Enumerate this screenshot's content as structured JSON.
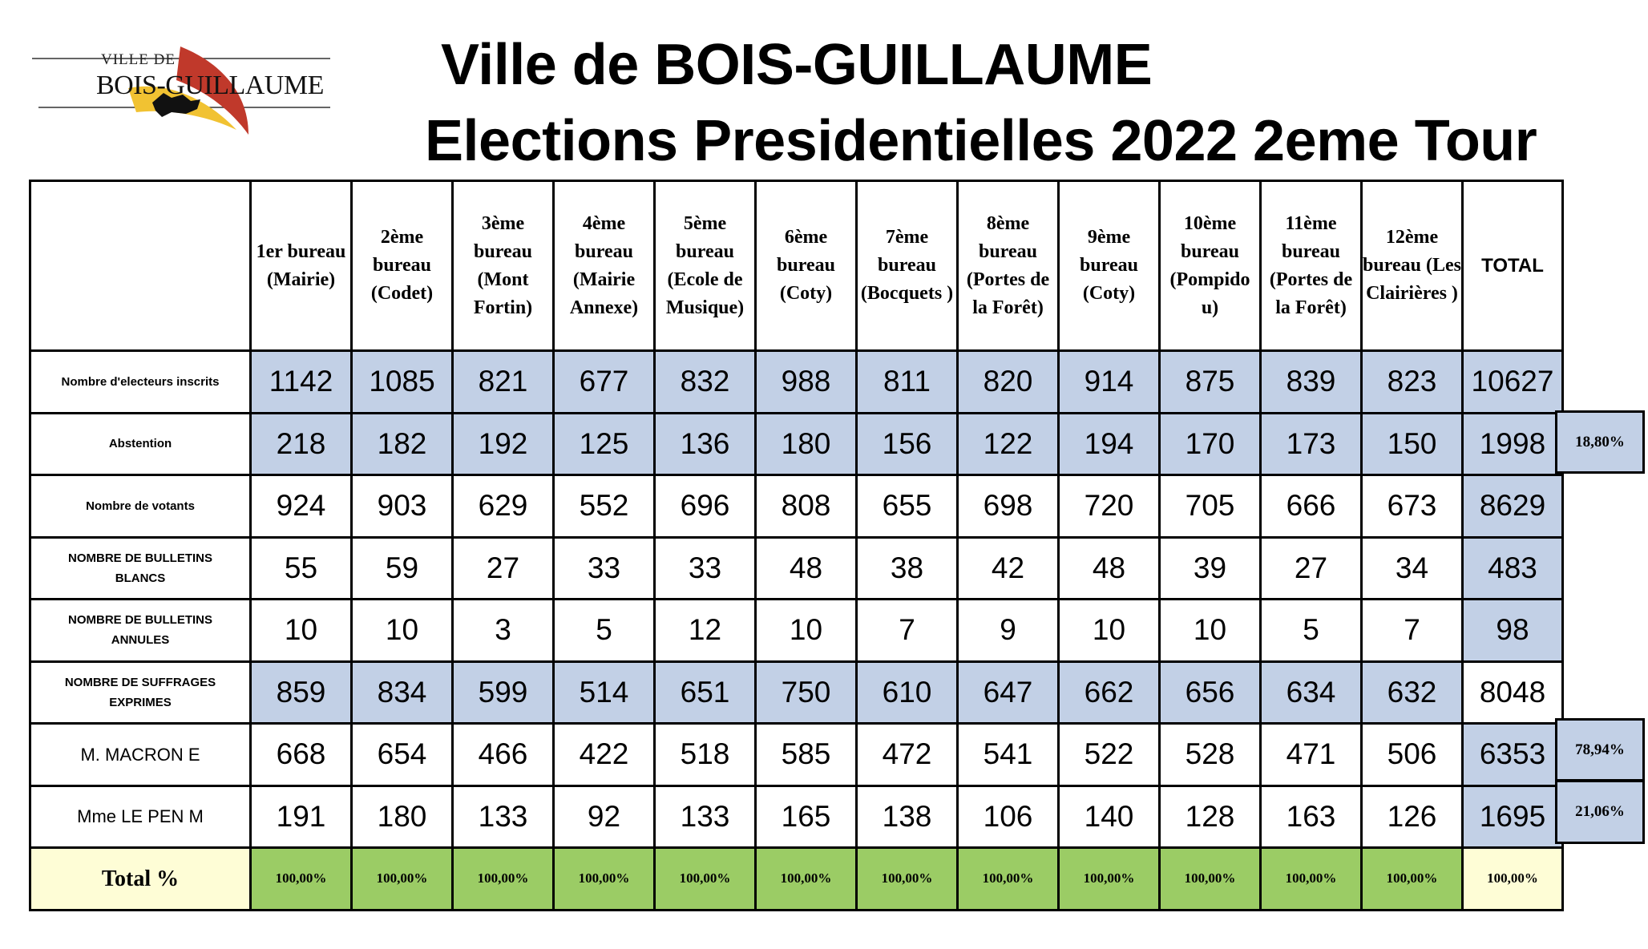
{
  "logo": {
    "city_text": "VILLE DE",
    "name_text": "BOIS-GUILLAUME"
  },
  "title": {
    "line1": "Ville de BOIS-GUILLAUME",
    "line2": "Elections Presidentielles 2022 2eme Tour"
  },
  "table": {
    "headers": [
      "1er bureau (Mairie)",
      "2ème bureau (Codet)",
      "3ème bureau (Mont Fortin)",
      "4ème bureau (Mairie Annexe)",
      "5ème bureau (Ecole de Musique)",
      "6ème bureau (Coty)",
      "7ème bureau (Bocquets )",
      "8ème bureau (Portes de la Forêt)",
      "9ème bureau (Coty)",
      "10ème bureau (Pompido u)",
      "11ème bureau (Portes de la Forêt)",
      "12ème bureau (Les Clairières )",
      "TOTAL"
    ],
    "rows": [
      {
        "label": "Nombre d'electeurs inscrits",
        "values": [
          "1142",
          "1085",
          "821",
          "677",
          "832",
          "988",
          "811",
          "820",
          "914",
          "875",
          "839",
          "823",
          "10627"
        ]
      },
      {
        "label": "Abstention",
        "values": [
          "218",
          "182",
          "192",
          "125",
          "136",
          "180",
          "156",
          "122",
          "194",
          "170",
          "173",
          "150",
          "1998"
        ]
      },
      {
        "label": "Nombre de votants",
        "values": [
          "924",
          "903",
          "629",
          "552",
          "696",
          "808",
          "655",
          "698",
          "720",
          "705",
          "666",
          "673",
          "8629"
        ]
      },
      {
        "label": "NOMBRE DE BULLETINS BLANCS",
        "values": [
          "55",
          "59",
          "27",
          "33",
          "33",
          "48",
          "38",
          "42",
          "48",
          "39",
          "27",
          "34",
          "483"
        ]
      },
      {
        "label": "NOMBRE DE BULLETINS ANNULES",
        "values": [
          "10",
          "10",
          "3",
          "5",
          "12",
          "10",
          "7",
          "9",
          "10",
          "10",
          "5",
          "7",
          "98"
        ]
      },
      {
        "label": "NOMBRE DE SUFFRAGES EXPRIMES",
        "values": [
          "859",
          "834",
          "599",
          "514",
          "651",
          "750",
          "610",
          "647",
          "662",
          "656",
          "634",
          "632",
          "8048"
        ]
      },
      {
        "label": "M. MACRON E",
        "values": [
          "668",
          "654",
          "466",
          "422",
          "518",
          "585",
          "472",
          "541",
          "522",
          "528",
          "471",
          "506",
          "6353"
        ]
      },
      {
        "label": "Mme LE PEN M",
        "values": [
          "191",
          "180",
          "133",
          "92",
          "133",
          "165",
          "138",
          "106",
          "140",
          "128",
          "163",
          "126",
          "1695"
        ]
      },
      {
        "label": "Total %",
        "values": [
          "100,00%",
          "100,00%",
          "100,00%",
          "100,00%",
          "100,00%",
          "100,00%",
          "100,00%",
          "100,00%",
          "100,00%",
          "100,00%",
          "100,00%",
          "100,00%",
          "100,00%"
        ]
      }
    ]
  },
  "side_percentages": {
    "abstention": "18,80%",
    "macron": "78,94%",
    "lepen": "21,06%"
  },
  "colors": {
    "blue_cells": "#c2d0e6",
    "green_cells": "#9bcc65",
    "cream_cells": "#fefdd6"
  }
}
